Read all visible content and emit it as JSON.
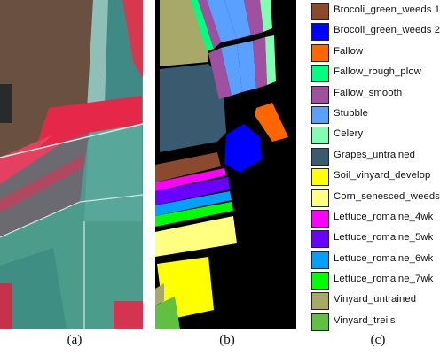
{
  "panels": {
    "a_caption": "(a)",
    "b_caption": "(b)",
    "c_caption": "(c)"
  },
  "legend": {
    "items": [
      {
        "label": "Brocoli_green_weeds 1",
        "color": "#8b4a2e"
      },
      {
        "label": "Brocoli_green_weeds 2",
        "color": "#0000ff"
      },
      {
        "label": "Fallow",
        "color": "#ff6600"
      },
      {
        "label": "Fallow_rough_plow",
        "color": "#00ff80"
      },
      {
        "label": "Fallow_smooth",
        "color": "#a050a0"
      },
      {
        "label": "Stubble",
        "color": "#5aa0ff"
      },
      {
        "label": "Celery",
        "color": "#80ffb0"
      },
      {
        "label": "Grapes_untrained",
        "color": "#3a5a70"
      },
      {
        "label": "Soil_vinyard_develop",
        "color": "#ffff00"
      },
      {
        "label": "Corn_senesced_weeds",
        "color": "#ffff80"
      },
      {
        "label": "Lettuce_romaine_4wk",
        "color": "#ff00ff"
      },
      {
        "label": "Lettuce_romaine_5wk",
        "color": "#6a00ff"
      },
      {
        "label": "Lettuce_romaine_6wk",
        "color": "#00a0ff"
      },
      {
        "label": "Lettuce_romaine_7wk",
        "color": "#00ff00"
      },
      {
        "label": "Vinyard_untrained",
        "color": "#a8a868"
      },
      {
        "label": "Vinyard_treils",
        "color": "#60c040"
      }
    ]
  }
}
